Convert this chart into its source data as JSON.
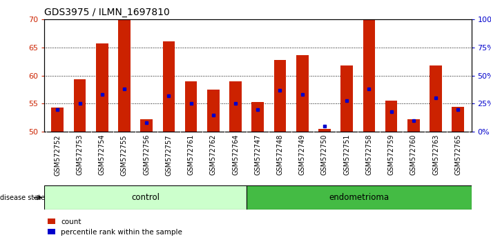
{
  "title": "GDS3975 / ILMN_1697810",
  "samples": [
    "GSM572752",
    "GSM572753",
    "GSM572754",
    "GSM572755",
    "GSM572756",
    "GSM572757",
    "GSM572761",
    "GSM572762",
    "GSM572764",
    "GSM572747",
    "GSM572748",
    "GSM572749",
    "GSM572750",
    "GSM572751",
    "GSM572758",
    "GSM572759",
    "GSM572760",
    "GSM572763",
    "GSM572765"
  ],
  "count_values": [
    54.3,
    59.3,
    65.7,
    70.0,
    52.2,
    66.1,
    59.0,
    57.5,
    59.0,
    55.3,
    62.8,
    63.7,
    50.5,
    61.8,
    70.0,
    55.5,
    52.2,
    61.8,
    54.5
  ],
  "percentile_values": [
    20,
    25,
    33,
    38,
    8,
    32,
    25,
    15,
    25,
    20,
    37,
    33,
    5,
    28,
    38,
    18,
    10,
    30,
    20
  ],
  "n_control": 9,
  "n_endo": 10,
  "y_min": 50,
  "y_max": 70,
  "y_ticks": [
    50,
    55,
    60,
    65,
    70
  ],
  "y2_ticks": [
    0,
    25,
    50,
    75,
    100
  ],
  "bar_color": "#CC2200",
  "marker_color": "#0000CC",
  "control_color": "#CCFFCC",
  "endometrioma_color": "#44BB44",
  "bg_color": "#BBBBBB",
  "plot_bg": "#FFFFFF",
  "label_fontsize": 7,
  "title_fontsize": 10
}
